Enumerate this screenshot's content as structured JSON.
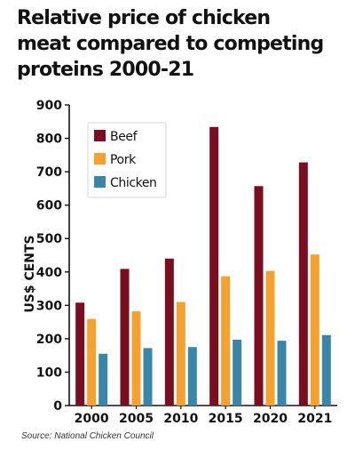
{
  "chart_data": {
    "type": "bar",
    "title": "Relative price of chicken\nmeat compared to competing\nproteins 2000-21",
    "xlabel": "",
    "ylabel": "US$ CENTS",
    "categories": [
      "2000",
      "2005",
      "2010",
      "2015",
      "2020",
      "2021"
    ],
    "series": [
      {
        "name": "Beef",
        "color": "#7a0d1f",
        "values": [
          308,
          409,
          440,
          834,
          657,
          728
        ]
      },
      {
        "name": "Pork",
        "color": "#f5a12e",
        "values": [
          259,
          282,
          310,
          387,
          403,
          452
        ]
      },
      {
        "name": "Chicken",
        "color": "#3a86a8",
        "values": [
          155,
          172,
          175,
          197,
          194,
          211
        ]
      }
    ],
    "ylim": [
      0,
      900
    ],
    "yticks": [
      0,
      100,
      200,
      300,
      400,
      500,
      600,
      700,
      800,
      900
    ],
    "grid": false,
    "legend_position": "top-left"
  },
  "source": "Source: National Chicken Council"
}
